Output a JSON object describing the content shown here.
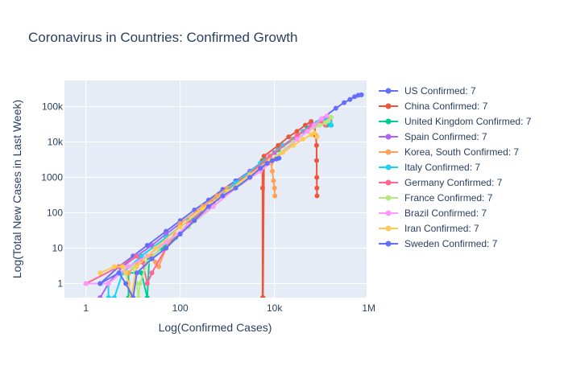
{
  "chart_data": {
    "type": "line",
    "title": "Coronavirus in Countries: Confirmed Growth",
    "xlabel": "Log(Confirmed Cases)",
    "ylabel": "Log(Total New Cases in Last Week)",
    "x_scale": "log",
    "y_scale": "log",
    "xlim": [
      0.35,
      900000
    ],
    "ylim": [
      0.4,
      550000
    ],
    "x_ticks": [
      {
        "value": 1,
        "label": "1"
      },
      {
        "value": 100,
        "label": "100"
      },
      {
        "value": 10000,
        "label": "10k"
      },
      {
        "value": 1000000,
        "label": "1M"
      }
    ],
    "y_ticks": [
      {
        "value": 1,
        "label": "1"
      },
      {
        "value": 10,
        "label": "10"
      },
      {
        "value": 100,
        "label": "100"
      },
      {
        "value": 1000,
        "label": "1000"
      },
      {
        "value": 10000,
        "label": "10k"
      },
      {
        "value": 100000,
        "label": "100k"
      }
    ],
    "grid": true,
    "legend_position": "right",
    "series": [
      {
        "name": "US Confirmed: 7",
        "color": "#636efa",
        "points": [
          [
            1,
            1
          ],
          [
            2,
            1
          ],
          [
            5,
            3
          ],
          [
            10,
            6
          ],
          [
            20,
            12
          ],
          [
            50,
            30
          ],
          [
            100,
            60
          ],
          [
            200,
            120
          ],
          [
            400,
            230
          ],
          [
            800,
            460
          ],
          [
            1500,
            800
          ],
          [
            3000,
            1500
          ],
          [
            6000,
            3000
          ],
          [
            12000,
            6000
          ],
          [
            25000,
            12000
          ],
          [
            50000,
            25000
          ],
          [
            100000,
            45000
          ],
          [
            200000,
            90000
          ],
          [
            300000,
            130000
          ],
          [
            400000,
            160000
          ],
          [
            500000,
            190000
          ],
          [
            600000,
            210000
          ],
          [
            700000,
            215000
          ]
        ]
      },
      {
        "name": "China Confirmed: 7",
        "color": "#ef553b",
        "points": [
          [
            5500,
            3000
          ],
          [
            5600,
            500
          ],
          [
            5600,
            0.4
          ],
          [
            5700,
            0.4
          ],
          [
            6000,
            4000
          ],
          [
            12000,
            8000
          ],
          [
            20000,
            14000
          ],
          [
            30000,
            20000
          ],
          [
            45000,
            30000
          ],
          [
            60000,
            38000
          ],
          [
            70000,
            30000
          ],
          [
            75000,
            15000
          ],
          [
            78000,
            8000
          ],
          [
            78500,
            3000
          ],
          [
            79000,
            1000
          ],
          [
            79500,
            500
          ],
          [
            80000,
            300
          ]
        ]
      },
      {
        "name": "United Kingdom Confirmed: 7",
        "color": "#00cc96",
        "points": [
          [
            8,
            0.4
          ],
          [
            8,
            2
          ],
          [
            15,
            2
          ],
          [
            20,
            0.4
          ],
          [
            22,
            5
          ],
          [
            40,
            10
          ],
          [
            80,
            20
          ],
          [
            150,
            50
          ],
          [
            300,
            120
          ],
          [
            600,
            250
          ],
          [
            1500,
            600
          ],
          [
            3000,
            1200
          ],
          [
            6000,
            3000
          ],
          [
            12000,
            6000
          ],
          [
            25000,
            12000
          ],
          [
            50000,
            25000
          ],
          [
            80000,
            35000
          ],
          [
            100000,
            40000
          ],
          [
            120000,
            35000
          ],
          [
            130000,
            30000
          ]
        ]
      },
      {
        "name": "Spain Confirmed: 7",
        "color": "#ab63fa",
        "points": [
          [
            2,
            0.4
          ],
          [
            3,
            1
          ],
          [
            6,
            3
          ],
          [
            12,
            6
          ],
          [
            25,
            12
          ],
          [
            50,
            25
          ],
          [
            100,
            50
          ],
          [
            300,
            150
          ],
          [
            1000,
            500
          ],
          [
            3000,
            1500
          ],
          [
            10000,
            5000
          ],
          [
            30000,
            15000
          ],
          [
            60000,
            30000
          ],
          [
            100000,
            45000
          ],
          [
            130000,
            50000
          ],
          [
            150000,
            40000
          ],
          [
            160000,
            30000
          ]
        ]
      },
      {
        "name": "Korea, South Confirmed: 7",
        "color": "#ffa15a",
        "points": [
          [
            8,
            2
          ],
          [
            15,
            5
          ],
          [
            25,
            6
          ],
          [
            30,
            4
          ],
          [
            35,
            3
          ],
          [
            50,
            10
          ],
          [
            100,
            50
          ],
          [
            300,
            150
          ],
          [
            600,
            300
          ],
          [
            1000,
            500
          ],
          [
            2000,
            900
          ],
          [
            3000,
            1200
          ],
          [
            4000,
            1600
          ],
          [
            5500,
            2200
          ],
          [
            7000,
            2800
          ],
          [
            8000,
            3000
          ],
          [
            8500,
            2500
          ],
          [
            9000,
            1500
          ],
          [
            9500,
            800
          ],
          [
            10000,
            500
          ],
          [
            10200,
            300
          ]
        ]
      },
      {
        "name": "Italy Confirmed: 7",
        "color": "#19d3f3",
        "points": [
          [
            2,
            1
          ],
          [
            3,
            1
          ],
          [
            3,
            0.4
          ],
          [
            4,
            0.4
          ],
          [
            6,
            2
          ],
          [
            15,
            6
          ],
          [
            50,
            20
          ],
          [
            150,
            60
          ],
          [
            500,
            200
          ],
          [
            1500,
            700
          ],
          [
            5000,
            2500
          ],
          [
            15000,
            8000
          ],
          [
            40000,
            20000
          ],
          [
            80000,
            35000
          ],
          [
            120000,
            40000
          ],
          [
            150000,
            35000
          ],
          [
            160000,
            30000
          ]
        ]
      },
      {
        "name": "Germany Confirmed: 7",
        "color": "#ff6692",
        "points": [
          [
            1,
            1
          ],
          [
            5,
            3
          ],
          [
            12,
            6
          ],
          [
            16,
            4
          ],
          [
            20,
            1
          ],
          [
            25,
            2
          ],
          [
            50,
            10
          ],
          [
            150,
            50
          ],
          [
            500,
            200
          ],
          [
            2000,
            800
          ],
          [
            8000,
            4000
          ],
          [
            30000,
            15000
          ],
          [
            60000,
            28000
          ],
          [
            90000,
            35000
          ],
          [
            110000,
            35000
          ],
          [
            120000,
            30000
          ]
        ]
      },
      {
        "name": "France Confirmed: 7",
        "color": "#b6e880",
        "points": [
          [
            6,
            3
          ],
          [
            10,
            3
          ],
          [
            12,
            1
          ],
          [
            13,
            0.4
          ],
          [
            14,
            1
          ],
          [
            20,
            4
          ],
          [
            50,
            15
          ],
          [
            150,
            40
          ],
          [
            500,
            150
          ],
          [
            2000,
            700
          ],
          [
            8000,
            3000
          ],
          [
            25000,
            10000
          ],
          [
            50000,
            20000
          ],
          [
            90000,
            30000
          ],
          [
            120000,
            35000
          ],
          [
            140000,
            40000
          ],
          [
            160000,
            50000
          ]
        ]
      },
      {
        "name": "Brazil Confirmed: 7",
        "color": "#ff97ff",
        "points": [
          [
            1,
            1
          ],
          [
            3,
            1
          ],
          [
            8,
            3
          ],
          [
            20,
            6
          ],
          [
            50,
            15
          ],
          [
            150,
            45
          ],
          [
            500,
            150
          ],
          [
            1500,
            500
          ],
          [
            5000,
            1500
          ],
          [
            15000,
            5000
          ],
          [
            30000,
            12000
          ],
          [
            50000,
            20000
          ],
          [
            70000,
            30000
          ],
          [
            100000,
            45000
          ],
          [
            130000,
            55000
          ]
        ]
      },
      {
        "name": "Iran Confirmed: 7",
        "color": "#fecb52",
        "points": [
          [
            2,
            2
          ],
          [
            4,
            3
          ],
          [
            6,
            3
          ],
          [
            7,
            2
          ],
          [
            8,
            1
          ],
          [
            9,
            0.4
          ],
          [
            12,
            3
          ],
          [
            30,
            10
          ],
          [
            100,
            40
          ],
          [
            300,
            130
          ],
          [
            1000,
            400
          ],
          [
            3000,
            1200
          ],
          [
            8000,
            3000
          ],
          [
            15000,
            5000
          ],
          [
            25000,
            8000
          ],
          [
            40000,
            12000
          ],
          [
            60000,
            16000
          ],
          [
            70000,
            18000
          ],
          [
            80000,
            14000
          ]
        ]
      },
      {
        "name": "Sweden Confirmed: 7",
        "color": "#636efa",
        "points": [
          [
            2,
            1
          ],
          [
            5,
            2
          ],
          [
            7,
            1
          ],
          [
            10,
            0.4
          ],
          [
            12,
            2
          ],
          [
            25,
            5
          ],
          [
            50,
            10
          ],
          [
            100,
            25
          ],
          [
            200,
            60
          ],
          [
            400,
            150
          ],
          [
            800,
            300
          ],
          [
            1500,
            500
          ],
          [
            3000,
            1000
          ],
          [
            5000,
            1800
          ],
          [
            7000,
            2500
          ],
          [
            9000,
            3000
          ],
          [
            11000,
            3300
          ],
          [
            12500,
            3500
          ]
        ]
      }
    ]
  }
}
